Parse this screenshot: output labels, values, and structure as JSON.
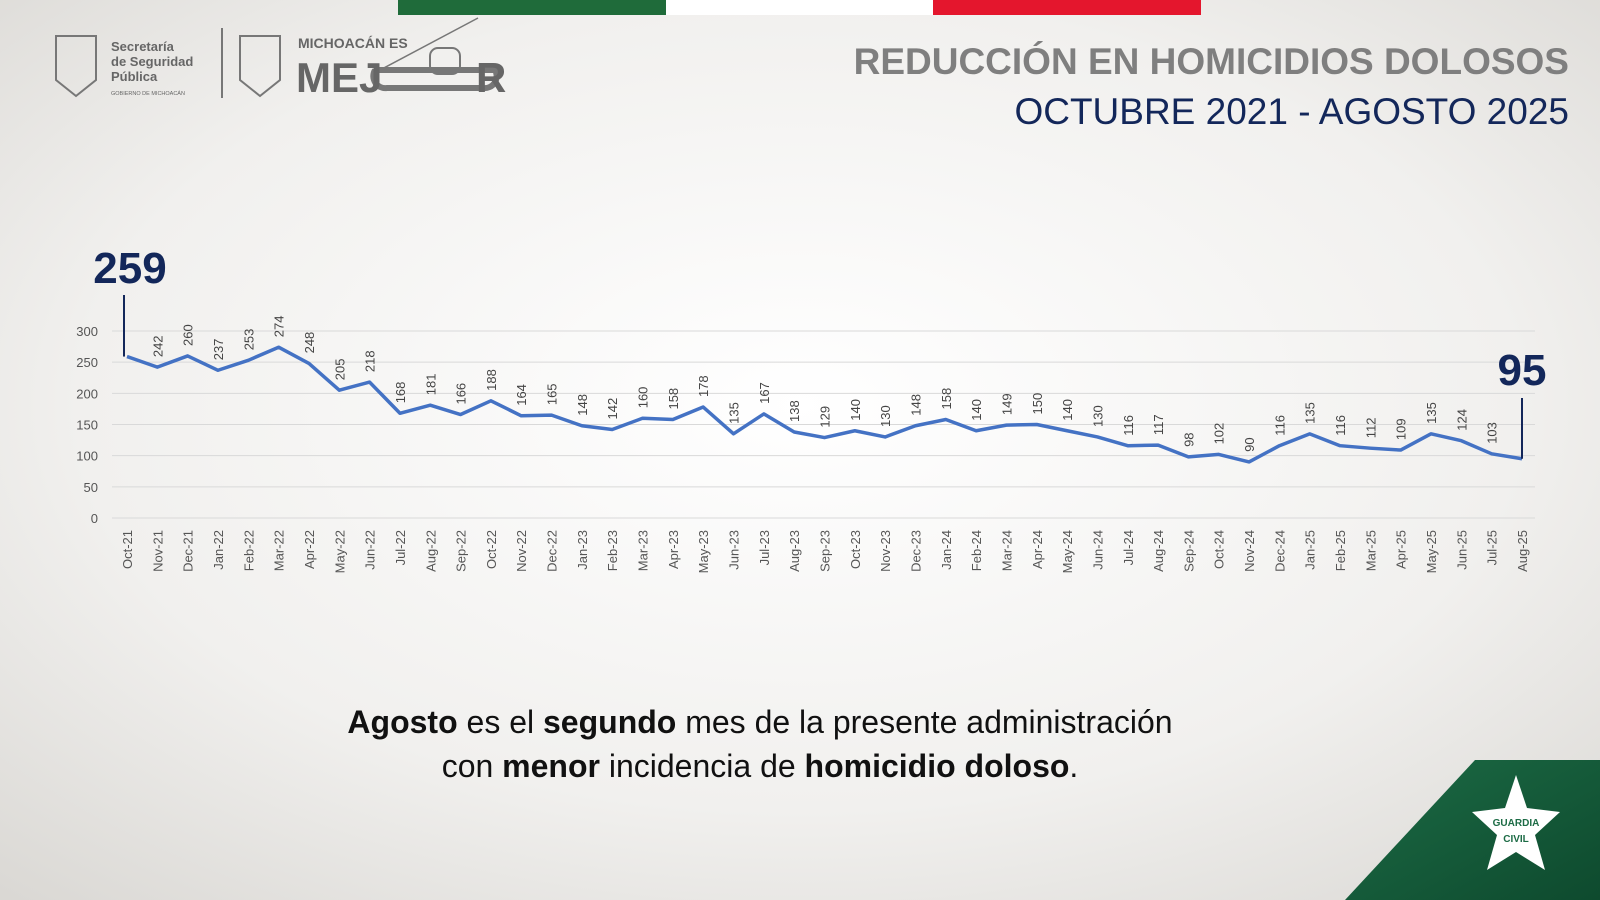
{
  "logos": {
    "agency": [
      "Secretaría",
      "de Seguridad",
      "Pública"
    ],
    "government": "GOBIERNO DE MICHOACÁN",
    "slogan_small": "MICHOACÁN ES",
    "slogan_big_start": "MEJ",
    "slogan_big_end": "R",
    "badge": [
      "GUARDIA",
      "CIVIL"
    ]
  },
  "chart_data": {
    "type": "line",
    "title": "REDUCCIÓN EN HOMICIDIOS DOLOSOS",
    "subtitle": "OCTUBRE 2021 - AGOSTO 2025",
    "categories": [
      "Oct-21",
      "Nov-21",
      "Dec-21",
      "Jan-22",
      "Feb-22",
      "Mar-22",
      "Apr-22",
      "May-22",
      "Jun-22",
      "Jul-22",
      "Aug-22",
      "Sep-22",
      "Oct-22",
      "Nov-22",
      "Dec-22",
      "Jan-23",
      "Feb-23",
      "Mar-23",
      "Apr-23",
      "May-23",
      "Jun-23",
      "Jul-23",
      "Aug-23",
      "Sep-23",
      "Oct-23",
      "Nov-23",
      "Dec-23",
      "Jan-24",
      "Feb-24",
      "Mar-24",
      "Apr-24",
      "May-24",
      "Jun-24",
      "Jul-24",
      "Aug-24",
      "Sep-24",
      "Oct-24",
      "Nov-24",
      "Dec-24",
      "Jan-25",
      "Feb-25",
      "Mar-25",
      "Apr-25",
      "May-25",
      "Jun-25",
      "Jul-25",
      "Aug-25"
    ],
    "series": [
      {
        "color": "#4472c4",
        "values": [
          259,
          242,
          260,
          237,
          253,
          274,
          248,
          205,
          218,
          168,
          181,
          166,
          188,
          164,
          165,
          148,
          142,
          160,
          158,
          178,
          135,
          167,
          138,
          129,
          140,
          130,
          148,
          158,
          140,
          149,
          150,
          140,
          130,
          116,
          117,
          98,
          102,
          90,
          116,
          135,
          116,
          112,
          109,
          135,
          124,
          103,
          95
        ]
      }
    ],
    "ylim": [
      0,
      300
    ],
    "yticks": [
      0,
      50,
      100,
      150,
      200,
      250,
      300
    ],
    "grid": true
  },
  "caption": {
    "lines": [
      [
        {
          "text": "Agosto",
          "bold": true
        },
        {
          "text": " es el ",
          "bold": false
        },
        {
          "text": "segundo",
          "bold": true
        },
        {
          "text": " mes de la presente administración",
          "bold": false
        }
      ],
      [
        {
          "text": "con ",
          "bold": false
        },
        {
          "text": "menor",
          "bold": true
        },
        {
          "text": " incidencia de ",
          "bold": false
        },
        {
          "text": "homicidio doloso",
          "bold": true
        },
        {
          "text": ".",
          "bold": false
        }
      ]
    ]
  }
}
